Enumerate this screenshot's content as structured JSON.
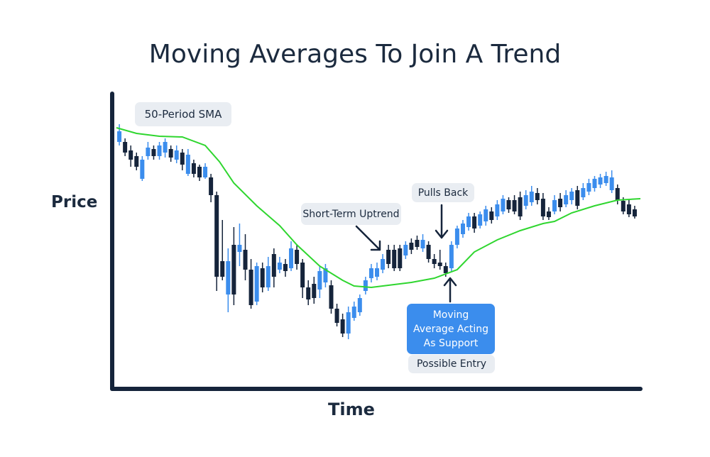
{
  "chart_data": {
    "type": "candlestick",
    "title": "Moving Averages To Join A Trend",
    "x_label": "Time",
    "y_label": "Price",
    "annotations": [
      "50-Period SMA",
      "Short-Term Uptrend",
      "Pulls Back",
      "Moving Average Acting As Support",
      "Possible Entry"
    ],
    "up_color": "#3b8ded",
    "down_color": "#15243b",
    "xlim": [
      0,
      92
    ],
    "ylim": [
      0,
      420
    ],
    "x": [
      1,
      2,
      3,
      4,
      5,
      6,
      7,
      8,
      9,
      10,
      11,
      12,
      13,
      14,
      15,
      16,
      17,
      18,
      19,
      20,
      21,
      22,
      23,
      24,
      25,
      26,
      27,
      28,
      29,
      30,
      31,
      32,
      33,
      34,
      35,
      36,
      37,
      38,
      39,
      40,
      41,
      42,
      43,
      44,
      45,
      46,
      47,
      48,
      49,
      50,
      51,
      52,
      53,
      54,
      55,
      56,
      57,
      58,
      59,
      60,
      61,
      62,
      63,
      64,
      65,
      66,
      67,
      68,
      69,
      70,
      71,
      72,
      73,
      74,
      75,
      76,
      77,
      78,
      79,
      80,
      81,
      82,
      83,
      84,
      85,
      86,
      87,
      88,
      89,
      90,
      91
    ],
    "open": [
      348,
      348,
      336,
      328,
      296,
      328,
      338,
      328,
      333,
      338,
      323,
      333,
      303,
      318,
      313,
      298,
      298,
      273,
      180,
      133,
      203,
      193,
      196,
      168,
      123,
      170,
      143,
      190,
      168,
      176,
      170,
      196,
      178,
      143,
      148,
      140,
      150,
      146,
      113,
      98,
      78,
      100,
      108,
      138,
      156,
      158,
      168,
      196,
      196,
      198,
      188,
      206,
      210,
      198,
      203,
      183,
      178,
      173,
      170,
      203,
      218,
      228,
      243,
      230,
      236,
      250,
      243,
      250,
      266,
      266,
      270,
      258,
      263,
      276,
      268,
      250,
      250,
      268,
      260,
      266,
      280,
      270,
      278,
      283,
      288,
      290,
      280,
      283,
      265,
      260,
      253
    ],
    "high": [
      373,
      353,
      343,
      333,
      328,
      348,
      343,
      348,
      353,
      343,
      343,
      338,
      338,
      323,
      316,
      318,
      303,
      278,
      238,
      198,
      228,
      233,
      218,
      183,
      178,
      178,
      186,
      198,
      186,
      183,
      208,
      203,
      183,
      153,
      158,
      173,
      176,
      153,
      120,
      106,
      116,
      123,
      133,
      158,
      176,
      178,
      190,
      203,
      203,
      203,
      208,
      212,
      216,
      218,
      208,
      190,
      196,
      178,
      208,
      230,
      238,
      248,
      248,
      250,
      258,
      256,
      266,
      273,
      270,
      273,
      278,
      280,
      286,
      283,
      276,
      256,
      273,
      276,
      280,
      283,
      286,
      290,
      296,
      300,
      303,
      306,
      308,
      288,
      270,
      266,
      258
    ],
    "low": [
      343,
      328,
      313,
      308,
      293,
      323,
      323,
      323,
      326,
      320,
      318,
      308,
      300,
      298,
      293,
      296,
      263,
      138,
      153,
      108,
      118,
      173,
      153,
      113,
      118,
      136,
      138,
      143,
      163,
      158,
      166,
      168,
      128,
      118,
      120,
      128,
      143,
      106,
      88,
      73,
      70,
      96,
      103,
      133,
      150,
      153,
      163,
      170,
      166,
      166,
      183,
      190,
      196,
      193,
      178,
      170,
      168,
      158,
      166,
      198,
      213,
      223,
      220,
      226,
      230,
      233,
      238,
      246,
      248,
      246,
      238,
      253,
      258,
      260,
      238,
      238,
      246,
      250,
      256,
      260,
      253,
      266,
      273,
      278,
      283,
      286,
      276,
      260,
      246,
      242,
      240
    ],
    "close": [
      363,
      333,
      323,
      313,
      323,
      340,
      328,
      343,
      348,
      326,
      336,
      316,
      330,
      303,
      298,
      313,
      273,
      158,
      158,
      180,
      133,
      203,
      168,
      118,
      173,
      143,
      173,
      158,
      178,
      166,
      198,
      176,
      143,
      126,
      128,
      166,
      170,
      113,
      93,
      78,
      108,
      116,
      128,
      153,
      170,
      170,
      183,
      176,
      170,
      170,
      203,
      196,
      200,
      210,
      183,
      176,
      173,
      163,
      203,
      226,
      233,
      243,
      226,
      246,
      253,
      238,
      260,
      268,
      253,
      250,
      243,
      273,
      278,
      266,
      243,
      242,
      266,
      256,
      273,
      278,
      258,
      283,
      290,
      296,
      298,
      300,
      298,
      266,
      250,
      246,
      243
    ],
    "lines": [
      {
        "name": "50-Period SMA",
        "color": "#2fd62f",
        "x": [
          0.5,
          4,
          8,
          12,
          16,
          18.5,
          21,
          25,
          29,
          32,
          36,
          40,
          42,
          45,
          48,
          52,
          56,
          60,
          63,
          67,
          71,
          75,
          77,
          80,
          84,
          88,
          92
        ],
        "values": [
          368,
          360,
          356,
          355,
          343,
          320,
          290,
          258,
          230,
          203,
          173,
          153,
          145,
          143,
          146,
          150,
          156,
          168,
          193,
          210,
          223,
          233,
          236,
          248,
          258,
          266,
          268
        ]
      }
    ]
  }
}
